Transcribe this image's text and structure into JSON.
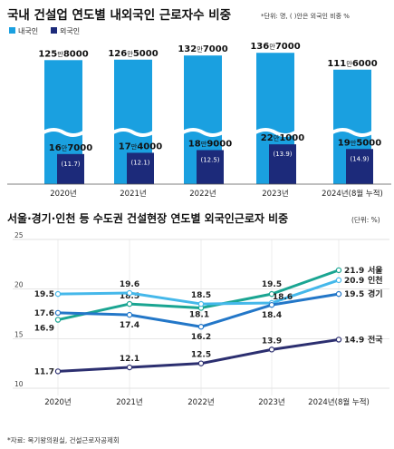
{
  "chart_data": [
    {
      "type": "bar",
      "title": "국내 건설업 연도별 내외국인 근로자수 비중",
      "subtitle": "*단위: 명, ( )안은 외국인 비중 %",
      "categories": [
        "2020년",
        "2021년",
        "2022년",
        "2023년",
        "2024년(8월 누적)"
      ],
      "broken_axis": true,
      "colors": {
        "domestic": "#1aa0e0",
        "foreign": "#1c2a7a"
      },
      "series": [
        {
          "name": "내국인",
          "values": [
            1258000,
            1265000,
            1327000,
            1367000,
            1116000
          ],
          "labels": [
            [
              "125",
              "만",
              "8000"
            ],
            [
              "126",
              "만",
              "5000"
            ],
            [
              "132",
              "만",
              "7000"
            ],
            [
              "136",
              "만",
              "7000"
            ],
            [
              "111",
              "만",
              "6000"
            ]
          ]
        },
        {
          "name": "외국인",
          "values": [
            167000,
            174000,
            189000,
            221000,
            195000
          ],
          "labels": [
            [
              "16",
              "만",
              "7000"
            ],
            [
              "17",
              "만",
              "4000"
            ],
            [
              "18",
              "만",
              "9000"
            ],
            [
              "22",
              "만",
              "1000"
            ],
            [
              "19",
              "만",
              "5000"
            ]
          ],
          "shares": [
            "(11.7)",
            "(12.1)",
            "(12.5)",
            "(13.9)",
            "(14.9)"
          ]
        }
      ]
    },
    {
      "type": "line",
      "title": "서울·경기·인천 등 수도권 건설현장 연도별 외국인근로자 비중",
      "unit_note": "(단위: %)",
      "categories": [
        "2020년",
        "2021년",
        "2022년",
        "2023년",
        "2024년(8월 누적)"
      ],
      "ylim": [
        10,
        25
      ],
      "yticks": [
        "10",
        "15",
        "20",
        "25"
      ],
      "grid": true,
      "series": [
        {
          "name": "서울",
          "values": [
            16.9,
            18.5,
            18.1,
            19.5,
            21.9
          ],
          "labels": [
            "16.9",
            "18.5",
            "18.1",
            "19.5",
            "21.9"
          ],
          "color": "#1aa592"
        },
        {
          "name": "인천",
          "values": [
            19.5,
            19.6,
            18.5,
            18.6,
            20.9
          ],
          "labels": [
            "19.5",
            "19.6",
            "18.5",
            "18.6",
            "20.9"
          ],
          "color": "#45b8ea"
        },
        {
          "name": "경기",
          "values": [
            17.6,
            17.4,
            16.2,
            18.4,
            19.5
          ],
          "labels": [
            "17.6",
            "17.4",
            "16.2",
            "18.4",
            "19.5"
          ],
          "color": "#2377c8"
        },
        {
          "name": "전국",
          "values": [
            11.7,
            12.1,
            12.5,
            13.9,
            14.9
          ],
          "labels": [
            "11.7",
            "12.1",
            "12.5",
            "13.9",
            "14.9"
          ],
          "color": "#2c2f70"
        }
      ]
    }
  ],
  "source": "*자료: 복기왕의원실, 건설근로자공제회"
}
